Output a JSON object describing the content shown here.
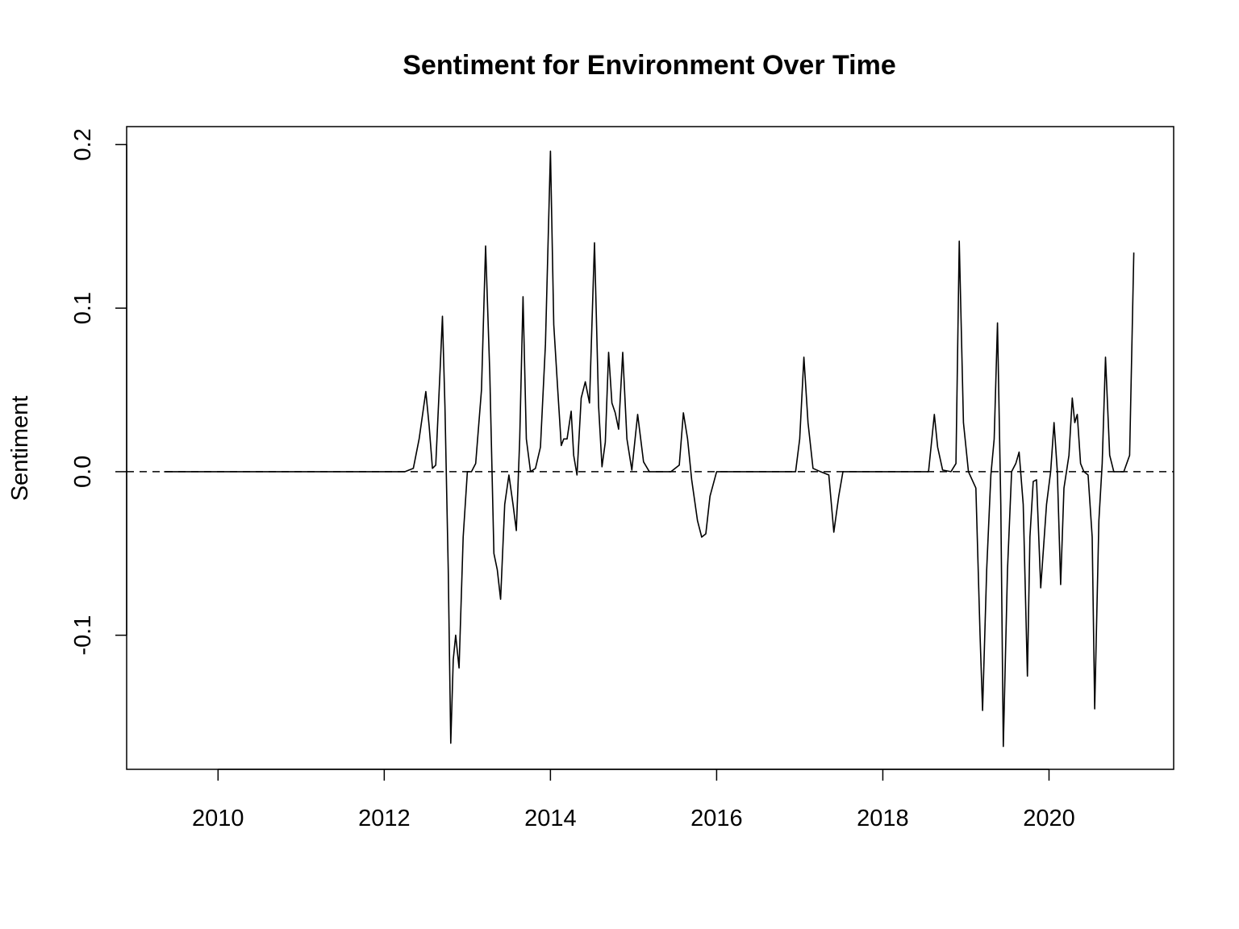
{
  "chart_data": {
    "type": "line",
    "title": "Sentiment for Environment Over Time",
    "xlabel": "",
    "ylabel": "Sentiment",
    "xlim": [
      2008.9,
      2021.5
    ],
    "ylim": [
      -0.182,
      0.211
    ],
    "x_ticks": [
      2010,
      2012,
      2014,
      2016,
      2018,
      2020
    ],
    "x_tick_labels": [
      "2010",
      "2012",
      "2014",
      "2016",
      "2018",
      "2020"
    ],
    "y_ticks": [
      -0.1,
      0.0,
      0.1,
      0.2
    ],
    "y_tick_labels": [
      "-0.1",
      "0.0",
      "0.1",
      "0.2"
    ],
    "reference_line": {
      "y": 0.0,
      "style": "dashed"
    },
    "grid": false,
    "legend": "none",
    "series": [
      {
        "x": [
          2009.35,
          2012.25,
          2012.35,
          2012.42,
          2012.5,
          2012.54,
          2012.58,
          2012.62,
          2012.67,
          2012.7,
          2012.73,
          2012.77,
          2012.8,
          2012.83,
          2012.86,
          2012.9,
          2012.95,
          2013.0,
          2013.05,
          2013.1,
          2013.17,
          2013.22,
          2013.27,
          2013.32,
          2013.36,
          2013.4,
          2013.45,
          2013.5,
          2013.55,
          2013.59,
          2013.63,
          2013.67,
          2013.71,
          2013.76,
          2013.82,
          2013.88,
          2013.94,
          2014.0,
          2014.04,
          2014.09,
          2014.13,
          2014.16,
          2014.2,
          2014.25,
          2014.28,
          2014.32,
          2014.37,
          2014.42,
          2014.47,
          2014.53,
          2014.58,
          2014.62,
          2014.66,
          2014.7,
          2014.74,
          2014.78,
          2014.82,
          2014.87,
          2014.92,
          2014.98,
          2015.05,
          2015.12,
          2015.19,
          2015.3,
          2015.45,
          2015.55,
          2015.6,
          2015.65,
          2015.7,
          2015.77,
          2015.82,
          2015.87,
          2015.92,
          2016.0,
          2016.5,
          2016.95,
          2017.0,
          2017.05,
          2017.1,
          2017.16,
          2017.25,
          2017.35,
          2017.41,
          2017.47,
          2017.52,
          2017.6,
          2018.0,
          2018.55,
          2018.62,
          2018.66,
          2018.72,
          2018.82,
          2018.88,
          2018.92,
          2018.97,
          2019.03,
          2019.12,
          2019.17,
          2019.2,
          2019.25,
          2019.3,
          2019.34,
          2019.38,
          2019.42,
          2019.45,
          2019.5,
          2019.55,
          2019.6,
          2019.64,
          2019.69,
          2019.74,
          2019.77,
          2019.81,
          2019.85,
          2019.9,
          2019.97,
          2020.02,
          2020.06,
          2020.1,
          2020.14,
          2020.18,
          2020.24,
          2020.28,
          2020.31,
          2020.34,
          2020.38,
          2020.42,
          2020.47,
          2020.52,
          2020.55,
          2020.6,
          2020.64,
          2020.68,
          2020.73,
          2020.78,
          2020.9,
          2020.97,
          2021.02
        ],
        "y": [
          0.0,
          0.0,
          0.002,
          0.02,
          0.049,
          0.028,
          0.002,
          0.004,
          0.06,
          0.095,
          0.04,
          -0.06,
          -0.166,
          -0.115,
          -0.1,
          -0.12,
          -0.04,
          0.0,
          0.0,
          0.005,
          0.05,
          0.138,
          0.06,
          -0.05,
          -0.06,
          -0.078,
          -0.02,
          -0.002,
          -0.02,
          -0.036,
          0.02,
          0.107,
          0.02,
          0.0,
          0.002,
          0.015,
          0.078,
          0.196,
          0.09,
          0.048,
          0.016,
          0.02,
          0.02,
          0.037,
          0.01,
          -0.002,
          0.045,
          0.055,
          0.042,
          0.14,
          0.04,
          0.003,
          0.018,
          0.073,
          0.042,
          0.036,
          0.026,
          0.073,
          0.02,
          0.001,
          0.035,
          0.006,
          0.0,
          0.0,
          0.0,
          0.004,
          0.036,
          0.02,
          -0.005,
          -0.03,
          -0.04,
          -0.038,
          -0.015,
          0.0,
          0.0,
          0.0,
          0.02,
          0.07,
          0.03,
          0.002,
          0.0,
          -0.002,
          -0.037,
          -0.015,
          0.0,
          0.0,
          0.0,
          0.0,
          0.035,
          0.015,
          0.001,
          0.0,
          0.005,
          0.141,
          0.03,
          0.0,
          -0.01,
          -0.1,
          -0.146,
          -0.06,
          -0.002,
          0.02,
          0.091,
          -0.02,
          -0.168,
          -0.06,
          0.0,
          0.005,
          0.012,
          -0.02,
          -0.125,
          -0.04,
          -0.006,
          -0.005,
          -0.071,
          -0.02,
          0.0,
          0.03,
          0.0,
          -0.069,
          -0.01,
          0.01,
          0.045,
          0.03,
          0.035,
          0.005,
          0.0,
          -0.002,
          -0.04,
          -0.145,
          -0.03,
          0.005,
          0.07,
          0.01,
          0.0,
          0.0,
          0.01,
          0.134
        ]
      }
    ]
  }
}
